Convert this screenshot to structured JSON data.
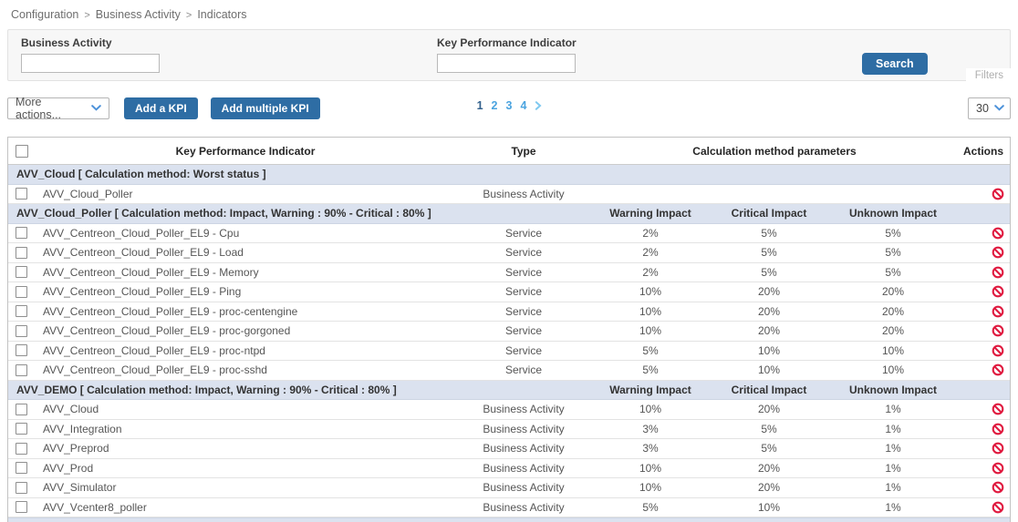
{
  "breadcrumb": {
    "items": [
      "Configuration",
      "Business Activity",
      "Indicators"
    ],
    "separator": ">"
  },
  "filters": {
    "business_activity_label": "Business Activity",
    "business_activity_value": "",
    "kpi_label": "Key Performance Indicator",
    "kpi_value": "",
    "search_label": "Search",
    "filters_label": "Filters"
  },
  "toolbar": {
    "more_actions_label": "More actions...",
    "add_kpi_label": "Add a KPI",
    "add_multiple_kpi_label": "Add multiple KPI",
    "page_size": "30"
  },
  "pagination": {
    "pages": [
      "1",
      "2",
      "3",
      "4"
    ],
    "current": "1"
  },
  "table": {
    "headers": {
      "kpi": "Key Performance Indicator",
      "type": "Type",
      "calc": "Calculation method parameters",
      "actions": "Actions"
    },
    "impact_headers": [
      "Warning Impact",
      "Critical Impact",
      "Unknown Impact"
    ],
    "groups": [
      {
        "title": "AVV_Cloud [ Calculation method: Worst status ]",
        "impact_headers": false,
        "rows": [
          {
            "name": "AVV_Cloud_Poller",
            "type": "Business Activity",
            "warning": "",
            "critical": "",
            "unknown": ""
          }
        ]
      },
      {
        "title": "AVV_Cloud_Poller [ Calculation method: Impact, Warning : 90% - Critical : 80% ]",
        "impact_headers": true,
        "rows": [
          {
            "name": "AVV_Centreon_Cloud_Poller_EL9 - Cpu",
            "type": "Service",
            "warning": "2%",
            "critical": "5%",
            "unknown": "5%"
          },
          {
            "name": "AVV_Centreon_Cloud_Poller_EL9 - Load",
            "type": "Service",
            "warning": "2%",
            "critical": "5%",
            "unknown": "5%"
          },
          {
            "name": "AVV_Centreon_Cloud_Poller_EL9 - Memory",
            "type": "Service",
            "warning": "2%",
            "critical": "5%",
            "unknown": "5%"
          },
          {
            "name": "AVV_Centreon_Cloud_Poller_EL9 - Ping",
            "type": "Service",
            "warning": "10%",
            "critical": "20%",
            "unknown": "20%"
          },
          {
            "name": "AVV_Centreon_Cloud_Poller_EL9 - proc-centengine",
            "type": "Service",
            "warning": "10%",
            "critical": "20%",
            "unknown": "20%"
          },
          {
            "name": "AVV_Centreon_Cloud_Poller_EL9 - proc-gorgoned",
            "type": "Service",
            "warning": "10%",
            "critical": "20%",
            "unknown": "20%"
          },
          {
            "name": "AVV_Centreon_Cloud_Poller_EL9 - proc-ntpd",
            "type": "Service",
            "warning": "5%",
            "critical": "10%",
            "unknown": "10%"
          },
          {
            "name": "AVV_Centreon_Cloud_Poller_EL9 - proc-sshd",
            "type": "Service",
            "warning": "5%",
            "critical": "10%",
            "unknown": "10%"
          }
        ]
      },
      {
        "title": "AVV_DEMO [ Calculation method: Impact, Warning : 90% - Critical : 80% ]",
        "impact_headers": true,
        "rows": [
          {
            "name": "AVV_Cloud",
            "type": "Business Activity",
            "warning": "10%",
            "critical": "20%",
            "unknown": "1%"
          },
          {
            "name": "AVV_Integration",
            "type": "Business Activity",
            "warning": "3%",
            "critical": "5%",
            "unknown": "1%"
          },
          {
            "name": "AVV_Preprod",
            "type": "Business Activity",
            "warning": "3%",
            "critical": "5%",
            "unknown": "1%"
          },
          {
            "name": "AVV_Prod",
            "type": "Business Activity",
            "warning": "10%",
            "critical": "20%",
            "unknown": "1%"
          },
          {
            "name": "AVV_Simulator",
            "type": "Business Activity",
            "warning": "10%",
            "critical": "20%",
            "unknown": "1%"
          },
          {
            "name": "AVV_Vcenter8_poller",
            "type": "Business Activity",
            "warning": "5%",
            "critical": "10%",
            "unknown": "1%"
          }
        ]
      }
    ]
  },
  "colors": {
    "accent_blue": "#2e6da4",
    "pagination_blue": "#4aa3df",
    "group_row_bg": "#dbe2ef",
    "action_red": "#e01b40"
  }
}
